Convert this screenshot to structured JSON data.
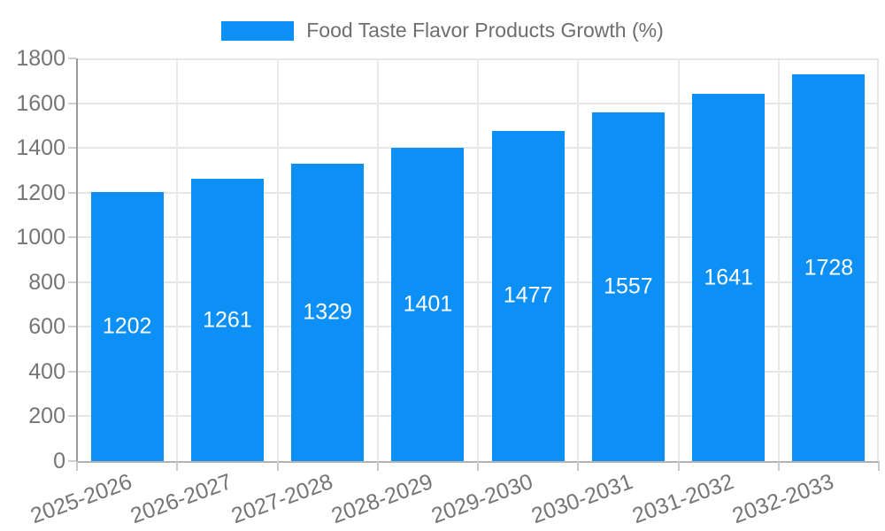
{
  "legend": {
    "label": "Food Taste Flavor Products Growth (%)"
  },
  "chart_data": {
    "type": "bar",
    "title": "Food Taste Flavor Products Growth (%)",
    "categories": [
      "2025-2026",
      "2026-2027",
      "2027-2028",
      "2028-2029",
      "2029-2030",
      "2030-2031",
      "2031-2032",
      "2032-2033"
    ],
    "values": [
      1202,
      1261,
      1329,
      1401,
      1477,
      1557,
      1641,
      1728
    ],
    "series": [
      {
        "name": "Food Taste Flavor Products Growth (%)",
        "values": [
          1202,
          1261,
          1329,
          1401,
          1477,
          1557,
          1641,
          1728
        ]
      }
    ],
    "xlabel": "",
    "ylabel": "",
    "ylim": [
      0,
      1800
    ],
    "ytick_step": 200,
    "yticks": [
      0,
      200,
      400,
      600,
      800,
      1000,
      1200,
      1400,
      1600,
      1800
    ],
    "grid": true,
    "legend_position": "top-center",
    "value_label_style": "inside-center-white",
    "xlabel_rotation_deg": -20,
    "colors": {
      "bar": "#0d90f5",
      "tick_text": "#757575",
      "legend_text": "#6e6e6e",
      "gridline": "#e6e6e6",
      "axis_y": "#9a9a9a",
      "axis_x": "#b3b3b3",
      "background": "#ffffff",
      "value_text": "#ffffff"
    }
  }
}
